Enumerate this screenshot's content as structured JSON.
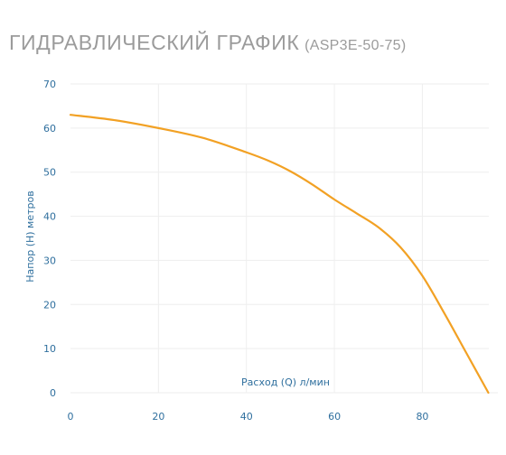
{
  "page": {
    "title": "ГИДРАВЛИЧЕСКИЙ ГРАФИК",
    "subtitle": "(ASP3E-50-75)"
  },
  "colors": {
    "line": "#f2a124",
    "grid": "#eeeeee",
    "axis_text": "#2f6f9e",
    "title_text": "#9b9b9b"
  },
  "chart_data": {
    "type": "line",
    "title": "ГИДРАВЛИЧЕСКИЙ ГРАФИК (ASP3E-50-75)",
    "xlabel": "Расход (Q) л/мин",
    "ylabel": "Напор (H) метров",
    "xlim": [
      0,
      95
    ],
    "ylim": [
      0,
      70
    ],
    "x_ticks": [
      0,
      20,
      40,
      60,
      80
    ],
    "y_ticks": [
      0,
      10,
      20,
      30,
      40,
      50,
      60,
      70
    ],
    "grid": true,
    "series": [
      {
        "x": [
          0,
          10,
          20,
          30,
          40,
          45,
          50,
          55,
          60,
          65,
          70,
          75,
          80,
          85,
          90,
          95
        ],
        "y": [
          63,
          61.8,
          60,
          57.8,
          54.5,
          52.6,
          50.2,
          47.2,
          43.8,
          40.7,
          37.5,
          33,
          26.5,
          18,
          9,
          0
        ]
      }
    ]
  }
}
